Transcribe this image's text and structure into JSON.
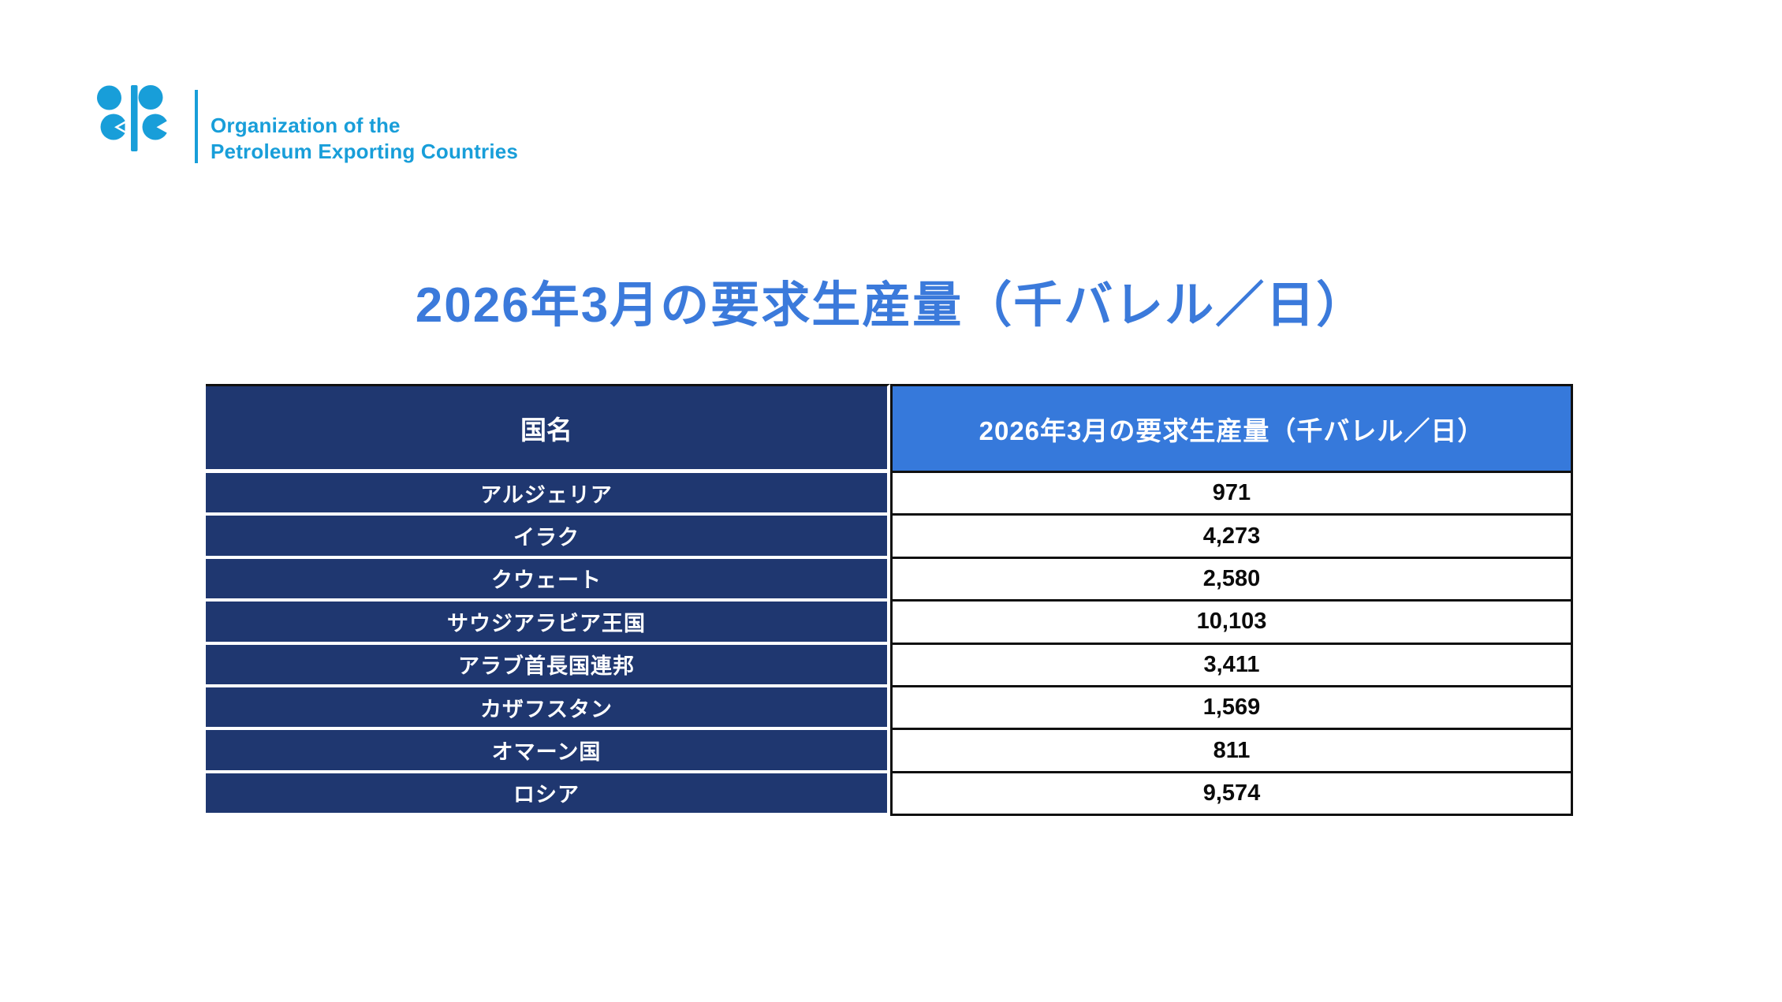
{
  "colors": {
    "logo_cyan": "#189ED9",
    "navy": "#1F3770",
    "header_blue": "#3679DB",
    "title_blue": "#3B7ADB",
    "border_black": "#101010"
  },
  "logo": {
    "icon": "opec-logo",
    "line1": "Organization of the",
    "line2": "Petroleum Exporting Countries"
  },
  "title": {
    "text": "2026年3月の要求生産量（千バレル／日）"
  },
  "table": {
    "columns": [
      {
        "label": "国名"
      },
      {
        "label": "2026年3月の要求生産量（千バレル／日）"
      }
    ],
    "rows": [
      {
        "country": "アルジェリア",
        "value": "971"
      },
      {
        "country": "イラク",
        "value": "4,273"
      },
      {
        "country": "クウェート",
        "value": "2,580"
      },
      {
        "country": "サウジアラビア王国",
        "value": "10,103"
      },
      {
        "country": "アラブ首長国連邦",
        "value": "3,411"
      },
      {
        "country": "カザフスタン",
        "value": "1,569"
      },
      {
        "country": "オマーン国",
        "value": "811"
      },
      {
        "country": "ロシア",
        "value": "9,574"
      }
    ]
  },
  "chart_data": {
    "type": "table",
    "title": "2026年3月の要求生産量（千バレル／日）",
    "columns": [
      "国名",
      "2026年3月の要求生産量（千バレル／日）"
    ],
    "categories": [
      "アルジェリア",
      "イラク",
      "クウェート",
      "サウジアラビア王国",
      "アラブ首長国連邦",
      "カザフスタン",
      "オマーン国",
      "ロシア"
    ],
    "values": [
      971,
      4273,
      2580,
      10103,
      3411,
      1569,
      811,
      9574
    ],
    "unit": "千バレル／日"
  }
}
